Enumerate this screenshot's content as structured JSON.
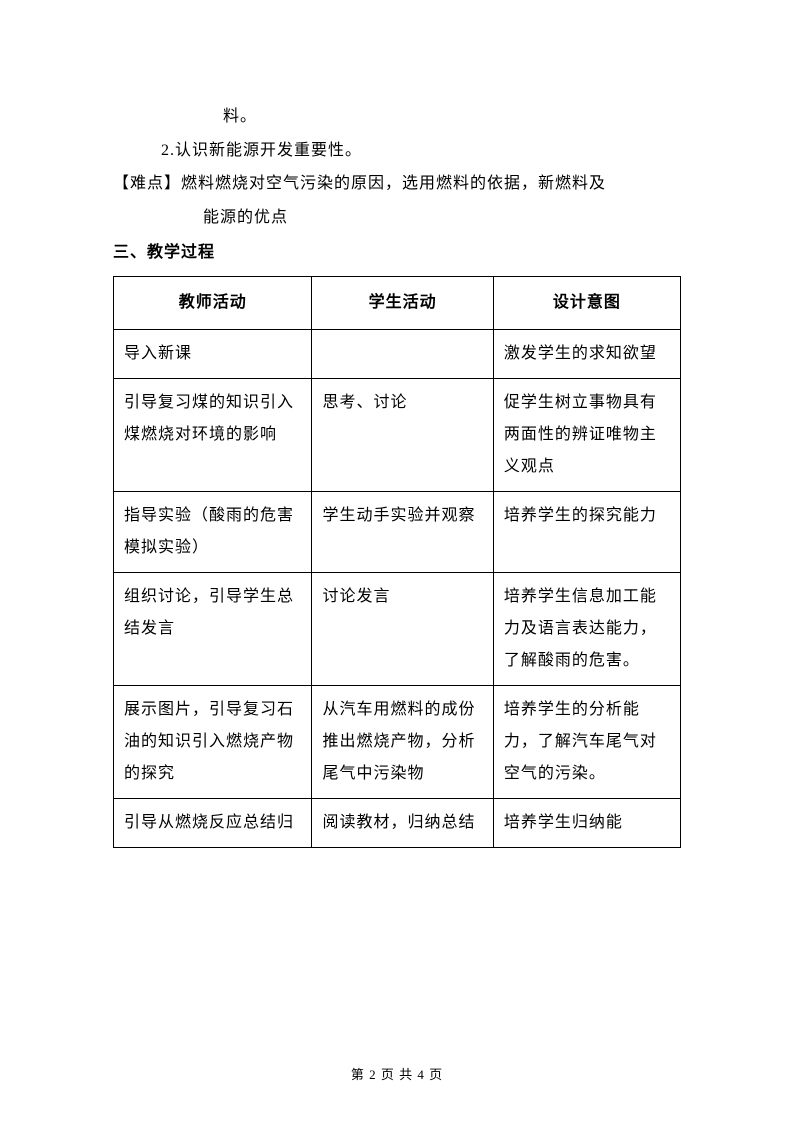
{
  "intro": {
    "line1": "料。",
    "line2": "2.认识新能源开发重要性。",
    "difficulty_label": "【难点】",
    "difficulty_text1": "燃料燃烧对空气污染的原因，选用燃料的依据，新燃料及",
    "difficulty_text2": "能源的优点"
  },
  "section_title": "三、教学过程",
  "table": {
    "headers": {
      "col1": "教师活动",
      "col2": "学生活动",
      "col3": "设计意图"
    },
    "rows": [
      {
        "teacher": "导入新课",
        "student": "",
        "intent": "激发学生的求知欲望"
      },
      {
        "teacher": "引导复习煤的知识引入煤燃烧对环境的影响",
        "student": "思考、讨论",
        "intent": "促学生树立事物具有两面性的辨证唯物主义观点"
      },
      {
        "teacher": "指导实验（酸雨的危害模拟实验）",
        "student": "学生动手实验并观察",
        "intent": "培养学生的探究能力"
      },
      {
        "teacher": "组织讨论，引导学生总结发言",
        "student": "讨论发言",
        "intent": "培养学生信息加工能力及语言表达能力，了解酸雨的危害。"
      },
      {
        "teacher": "展示图片，引导复习石油的知识引入燃烧产物的探究",
        "student": "从汽车用燃料的成份推出燃烧产物，分析尾气中污染物",
        "intent": "培养学生的分析能力，了解汽车尾气对空气的污染。"
      },
      {
        "teacher": "引导从燃烧反应总结归",
        "student": "阅读教材，归纳总结",
        "intent": "培养学生归纳能"
      }
    ]
  },
  "footer": "第 2 页 共 4 页"
}
